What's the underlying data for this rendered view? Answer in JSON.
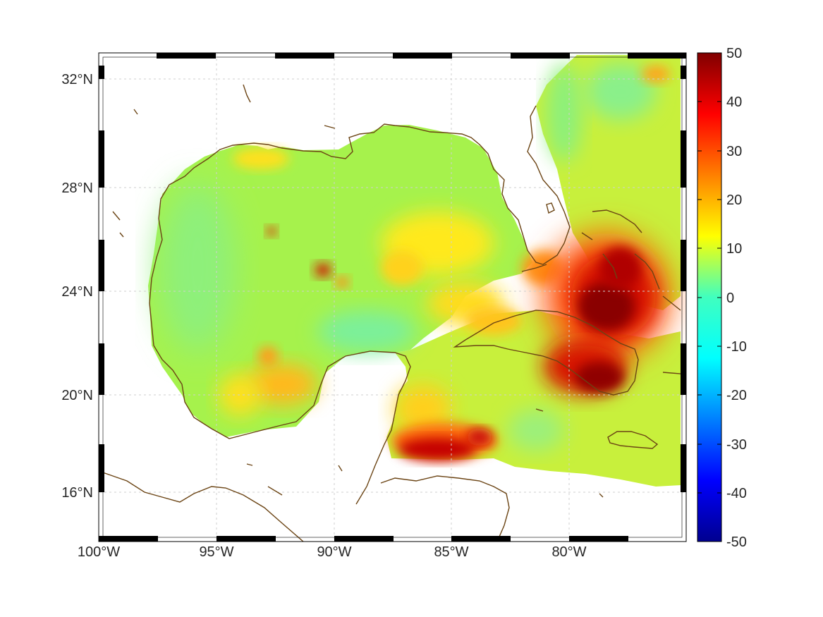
{
  "map": {
    "x_ticks": [
      "100°W",
      "95°W",
      "90°W",
      "85°W",
      "80°W"
    ],
    "y_ticks": [
      "32°N",
      "28°N",
      "24°N",
      "20°N",
      "16°N"
    ],
    "lon_range": [
      -100,
      -75.2
    ],
    "lat_range": [
      14.2,
      33
    ],
    "grid": true,
    "coastline_color": "#6b4414",
    "land_color": "#ffffff"
  },
  "colorbar": {
    "ticks": [
      "50",
      "40",
      "30",
      "20",
      "10",
      "0",
      "-10",
      "-20",
      "-30",
      "-40",
      "-50"
    ],
    "range": [
      -50,
      50
    ],
    "colormap": "jet"
  }
}
